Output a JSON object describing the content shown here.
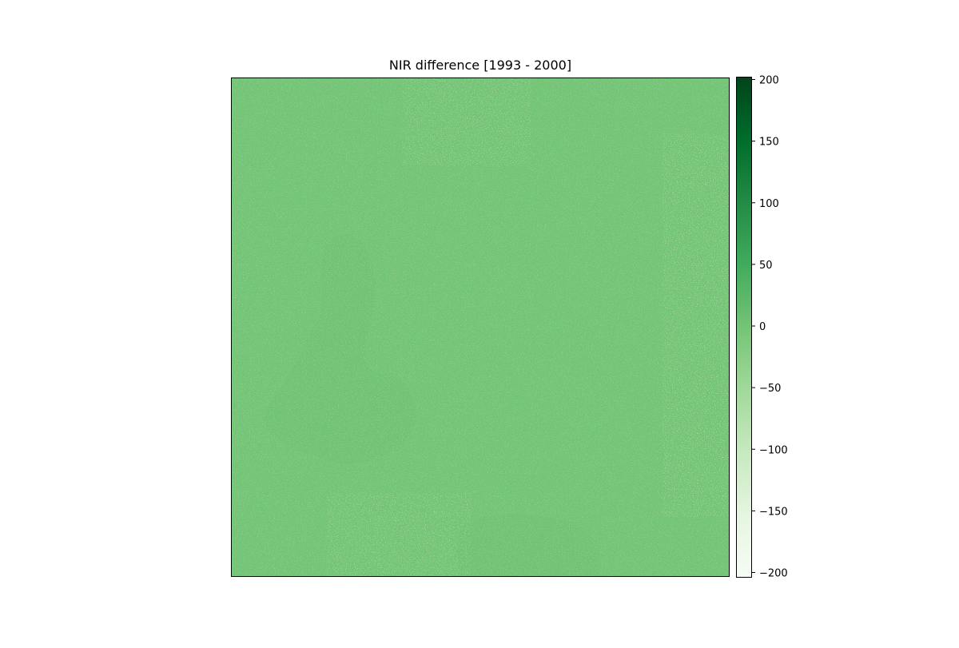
{
  "chart_data": {
    "type": "heatmap",
    "title": "NIR difference [1993 - 2000]",
    "colormap": "Greens",
    "colormap_stops": [
      "#f7fcf5",
      "#e5f5e0",
      "#c7e9c0",
      "#a1d99b",
      "#74c476",
      "#41ab5d",
      "#238b45",
      "#006d2c",
      "#00441b"
    ],
    "vmin": -200,
    "vmax": 200,
    "typical_value": 0,
    "background_color": "#74c476",
    "x_axis": {
      "ticks_visible": false
    },
    "y_axis": {
      "ticks_visible": false
    },
    "colorbar": {
      "ticks": [
        200,
        150,
        100,
        50,
        0,
        -50,
        -100,
        -150,
        -200
      ],
      "tick_labels": [
        "200",
        "150",
        "100",
        "50",
        "0",
        "−50",
        "−100",
        "−150",
        "−200"
      ]
    },
    "grid": false,
    "legend": "none"
  }
}
